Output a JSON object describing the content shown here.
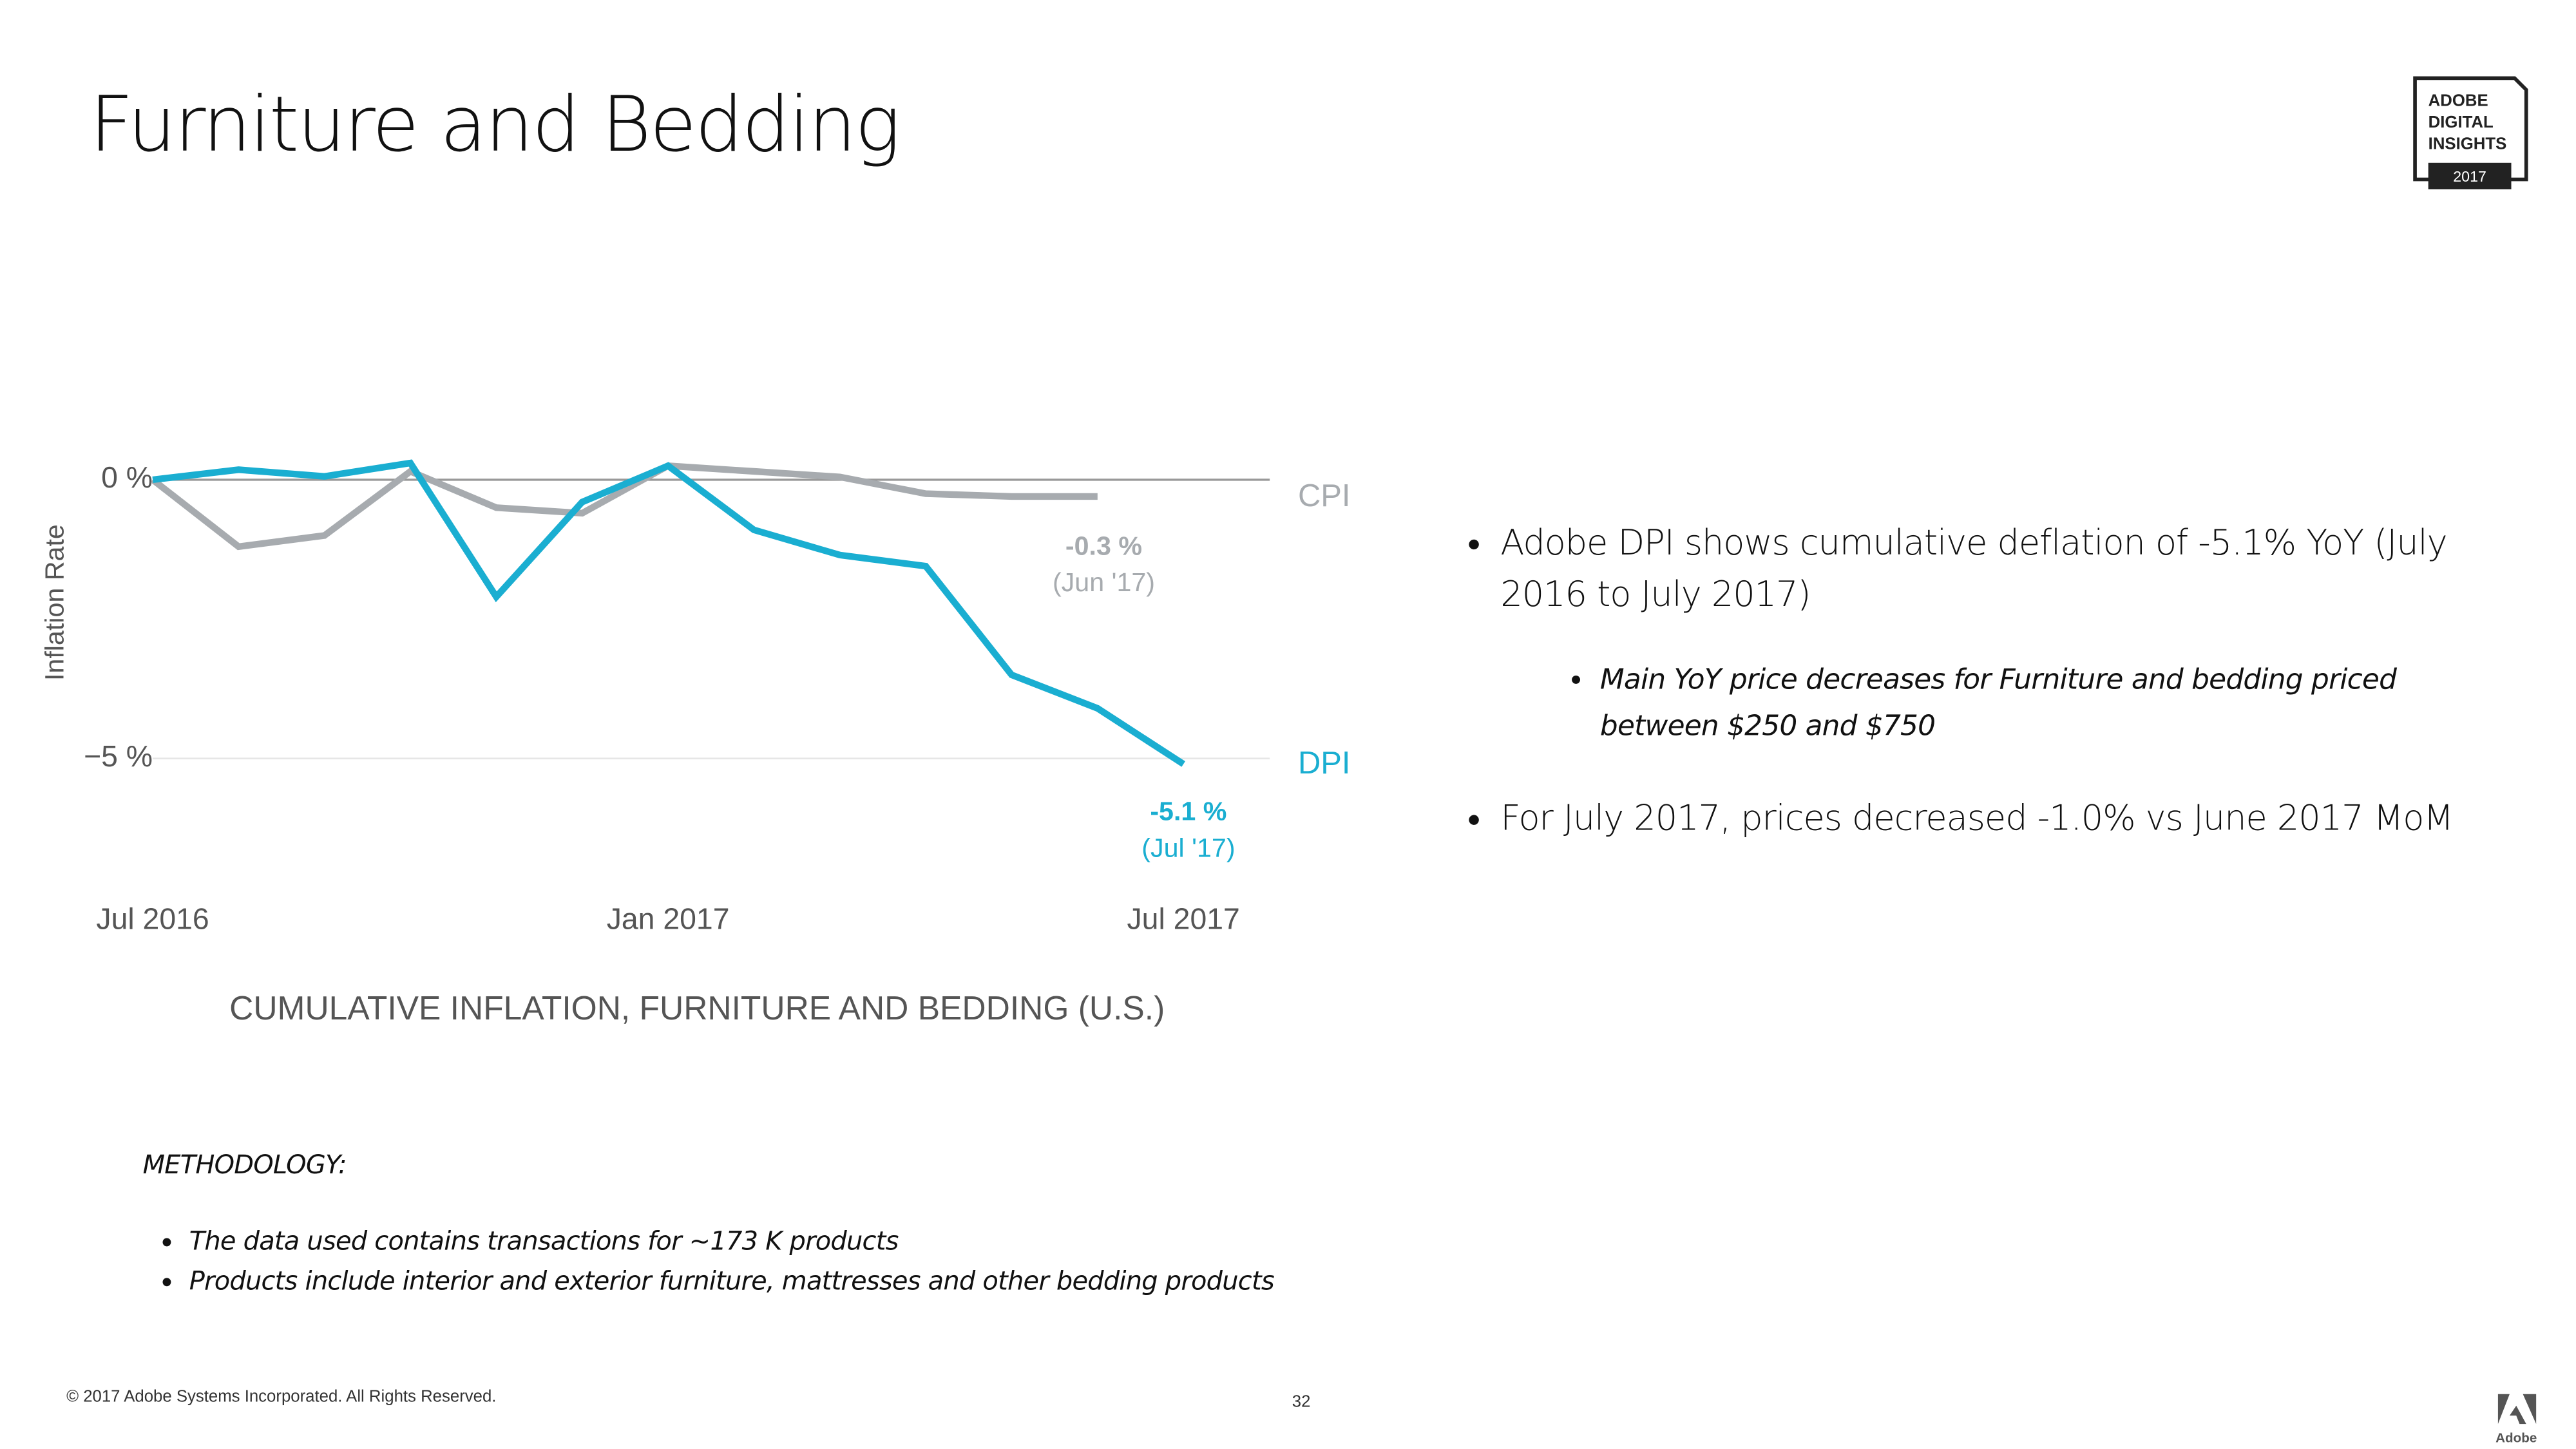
{
  "header": {
    "title": "Furniture and Bedding"
  },
  "logo": {
    "lines": [
      "ADOBE",
      "DIGITAL",
      "INSIGHTS"
    ],
    "year": "2017"
  },
  "chart_data": {
    "type": "line",
    "caption": "CUMULATIVE INFLATION, FURNITURE AND BEDDING (U.S.)",
    "y_label": "Inflation Rate",
    "categories": [
      "Jul 2016",
      null,
      null,
      null,
      null,
      null,
      "Jan 2017",
      null,
      null,
      null,
      null,
      null,
      "Jul 2017"
    ],
    "series": [
      {
        "name": "CPI",
        "color": "#a7abaf",
        "values": [
          0,
          -1.2,
          -1.0,
          0.15,
          -0.5,
          -0.6,
          0.25,
          0.15,
          0.05,
          -0.25,
          -0.3,
          -0.3,
          null
        ],
        "annotation": {
          "text": "-0.3 %",
          "note": "(Jun '17)"
        }
      },
      {
        "name": "DPI",
        "color": "#1aaed1",
        "values": [
          0,
          0.18,
          0.06,
          0.3,
          -2.1,
          -0.4,
          0.25,
          -0.9,
          -1.35,
          -1.55,
          -3.5,
          -4.1,
          -5.1
        ],
        "annotation": {
          "text": "-5.1 %",
          "note": "(Jul '17)"
        }
      }
    ],
    "ylim": [
      -5.6,
      0.6
    ],
    "yticks": [
      {
        "value": 0,
        "label": "0 %"
      },
      {
        "value": -5,
        "label": "−5 %"
      }
    ],
    "grid": true
  },
  "bullets": [
    {
      "text": "Adobe DPI shows cumulative deflation of -5.1% YoY (July 2016 to July 2017)",
      "sub": [
        "Main YoY price decreases for Furniture and bedding priced between $250 and $750"
      ]
    },
    {
      "text": "For July 2017, prices decreased -1.0% vs June 2017 MoM"
    }
  ],
  "methodology": {
    "heading": "METHODOLOGY:",
    "items": [
      "The data used contains transactions for ~173 K products",
      "Products include interior and exterior furniture, mattresses and other bedding products"
    ]
  },
  "footer": {
    "copyright": "© 2017 Adobe Systems Incorporated.  All Rights Reserved.",
    "page": "32",
    "brand": "Adobe"
  }
}
